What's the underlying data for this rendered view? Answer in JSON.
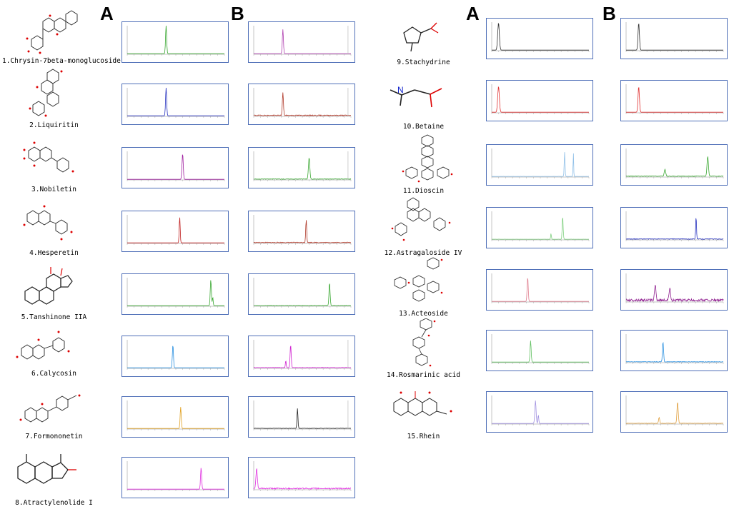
{
  "panel_headers": [
    "A",
    "B",
    "A",
    "B"
  ],
  "compounds": [
    {
      "id": 1,
      "label": "1.Chrysin-7beta-monoglucoside",
      "a": {
        "color": "#3aa832",
        "peaks": [
          [
            0.4,
            1.0,
            0.008
          ]
        ],
        "noise": 0.0
      },
      "b": {
        "color": "#b040b0",
        "peaks": [
          [
            0.3,
            0.85,
            0.008
          ]
        ],
        "noise": 0.0,
        "tail": 0.97
      }
    },
    {
      "id": 2,
      "label": "2.Liquiritin",
      "a": {
        "color": "#2a35c0",
        "peaks": [
          [
            0.4,
            1.0,
            0.008
          ]
        ],
        "noise": 0.0
      },
      "b": {
        "color": "#b03a2a",
        "peaks": [
          [
            0.3,
            0.8,
            0.008
          ]
        ],
        "noise": 0.12,
        "tail": 0.97
      }
    },
    {
      "id": 3,
      "label": "3.Nobiletin",
      "a": {
        "color": "#a020a0",
        "peaks": [
          [
            0.57,
            0.9,
            0.009
          ]
        ],
        "noise": 0.0
      },
      "b": {
        "color": "#3aa832",
        "peaks": [
          [
            0.57,
            0.75,
            0.01
          ]
        ],
        "noise": 0.08,
        "tail": 0.97
      }
    },
    {
      "id": 4,
      "label": "4.Hesperetin",
      "a": {
        "color": "#c02020",
        "peaks": [
          [
            0.54,
            0.9,
            0.007
          ]
        ],
        "noise": 0.0
      },
      "b": {
        "color": "#b03a2a",
        "peaks": [
          [
            0.54,
            0.8,
            0.007
          ]
        ],
        "noise": 0.1,
        "tail": 0.0
      }
    },
    {
      "id": 5,
      "label": "5.Tanshinone IIA",
      "a": {
        "color": "#3aa832",
        "peaks": [
          [
            0.86,
            0.9,
            0.008
          ],
          [
            0.88,
            0.3,
            0.006
          ]
        ],
        "noise": 0.0
      },
      "b": {
        "color": "#3aa832",
        "peaks": [
          [
            0.78,
            0.8,
            0.008
          ]
        ],
        "noise": 0.05,
        "tail": 0.0
      }
    },
    {
      "id": 6,
      "label": "6.Calycosin",
      "a": {
        "color": "#2a90e0",
        "peaks": [
          [
            0.47,
            0.8,
            0.008
          ]
        ],
        "noise": 0.0
      },
      "b": {
        "color": "#d020d0",
        "peaks": [
          [
            0.38,
            0.8,
            0.008
          ],
          [
            0.33,
            0.25,
            0.006
          ]
        ],
        "noise": 0.05,
        "tail": 0.97
      }
    },
    {
      "id": 7,
      "label": "7.Formononetin",
      "a": {
        "color": "#e0a020",
        "peaks": [
          [
            0.55,
            0.75,
            0.008
          ]
        ],
        "noise": 0.0
      },
      "b": {
        "color": "#202020",
        "peaks": [
          [
            0.45,
            0.7,
            0.007
          ]
        ],
        "noise": 0.04,
        "tail": 0.97
      }
    },
    {
      "id": 8,
      "label": "8.Atractylenolide I",
      "a": {
        "color": "#e030e0",
        "peaks": [
          [
            0.76,
            0.75,
            0.008
          ]
        ],
        "noise": 0.0
      },
      "b": {
        "color": "#e030e0",
        "peaks": [
          [
            0.03,
            0.7,
            0.01
          ]
        ],
        "noise": 0.18,
        "tail": 0.0
      }
    },
    {
      "id": 9,
      "label": "9.Stachydrine",
      "a": {
        "color": "#303030",
        "peaks": [
          [
            0.07,
            0.95,
            0.012
          ]
        ],
        "noise": 0.0
      },
      "b": {
        "color": "#303030",
        "peaks": [
          [
            0.13,
            0.95,
            0.01
          ]
        ],
        "noise": 0.0,
        "tail": 0.0
      }
    },
    {
      "id": 10,
      "label": "10.Betaine",
      "a": {
        "color": "#e03030",
        "peaks": [
          [
            0.07,
            0.9,
            0.012
          ]
        ],
        "noise": 0.0
      },
      "b": {
        "color": "#e03030",
        "peaks": [
          [
            0.13,
            0.9,
            0.01
          ]
        ],
        "noise": 0.0,
        "tail": 0.0
      }
    },
    {
      "id": 11,
      "label": "11.Dioscin",
      "a": {
        "color": "#90c0e8",
        "peaks": [
          [
            0.75,
            0.85,
            0.006
          ],
          [
            0.84,
            0.85,
            0.004
          ]
        ],
        "noise": 0.02
      },
      "b": {
        "color": "#3aa832",
        "peaks": [
          [
            0.84,
            0.7,
            0.01
          ],
          [
            0.4,
            0.25,
            0.01
          ]
        ],
        "noise": 0.08,
        "tail": 0.0
      }
    },
    {
      "id": 12,
      "label": "12.Astragaloside IV",
      "a": {
        "color": "#80d080",
        "peaks": [
          [
            0.73,
            0.8,
            0.007
          ],
          [
            0.61,
            0.2,
            0.005
          ]
        ],
        "noise": 0.02
      },
      "b": {
        "color": "#2a35c0",
        "peaks": [
          [
            0.72,
            0.8,
            0.006
          ]
        ],
        "noise": 0.08,
        "tail": 0.0
      }
    },
    {
      "id": 13,
      "label": "13.Acteoside",
      "a": {
        "color": "#e08090",
        "peaks": [
          [
            0.37,
            0.85,
            0.008
          ]
        ],
        "noise": 0.0
      },
      "b": {
        "color": "#902090",
        "peaks": [
          [
            0.3,
            0.55,
            0.01
          ],
          [
            0.45,
            0.45,
            0.01
          ]
        ],
        "noise": 0.35,
        "tail": 0.0
      }
    },
    {
      "id": 14,
      "label": "14.Rosmarinic acid",
      "a": {
        "color": "#60c060",
        "peaks": [
          [
            0.4,
            0.75,
            0.008
          ]
        ],
        "noise": 0.0
      },
      "b": {
        "color": "#2a90e0",
        "peaks": [
          [
            0.38,
            0.7,
            0.008
          ]
        ],
        "noise": 0.08,
        "tail": 0.0
      }
    },
    {
      "id": 15,
      "label": "15.Rhein",
      "a": {
        "color": "#a090e0",
        "peaks": [
          [
            0.45,
            0.8,
            0.009
          ],
          [
            0.48,
            0.3,
            0.006
          ]
        ],
        "noise": 0.0
      },
      "b": {
        "color": "#e0a040",
        "peaks": [
          [
            0.53,
            0.75,
            0.009
          ],
          [
            0.34,
            0.2,
            0.008
          ]
        ],
        "noise": 0.05,
        "tail": 0.0
      }
    }
  ]
}
